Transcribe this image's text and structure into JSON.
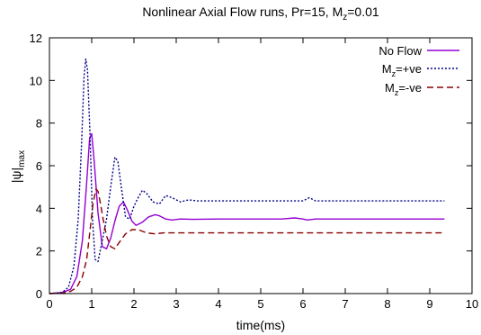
{
  "chart_data": {
    "type": "line",
    "title": {
      "prefix": "Nonlinear Axial Flow runs, Pr=15, M",
      "sub": "z",
      "suffix": "=0.01"
    },
    "xlabel": "time(ms)",
    "ylabel": {
      "main": "|ψ|",
      "sub": "max"
    },
    "xlim": [
      0,
      10
    ],
    "ylim": [
      0,
      12
    ],
    "xticks": [
      "0",
      "1",
      "2",
      "3",
      "4",
      "5",
      "6",
      "7",
      "8",
      "9",
      "10"
    ],
    "yticks": [
      "0",
      "2",
      "4",
      "6",
      "8",
      "10",
      "12"
    ],
    "grid": false,
    "legend_position": "top-right",
    "series": [
      {
        "name": "No Flow",
        "legend": {
          "main": "No Flow",
          "sub": "",
          "suffix": ""
        },
        "color": "#9400d3",
        "dash": "solid",
        "x": [
          0,
          0.3,
          0.5,
          0.65,
          0.78,
          0.88,
          0.95,
          1.0,
          1.06,
          1.15,
          1.25,
          1.35,
          1.45,
          1.55,
          1.65,
          1.75,
          1.85,
          1.95,
          2.05,
          2.2,
          2.35,
          2.5,
          2.6,
          2.75,
          2.9,
          3.1,
          3.4,
          4.0,
          5.0,
          5.5,
          5.8,
          6.0,
          6.1,
          6.3,
          7.0,
          8.0,
          9.35
        ],
        "y": [
          0,
          0.05,
          0.2,
          0.8,
          2.5,
          5.2,
          7.3,
          7.5,
          6.2,
          3.8,
          2.2,
          2.1,
          2.6,
          3.4,
          4.1,
          4.3,
          3.9,
          3.4,
          3.2,
          3.35,
          3.6,
          3.7,
          3.65,
          3.5,
          3.45,
          3.5,
          3.48,
          3.5,
          3.5,
          3.5,
          3.55,
          3.5,
          3.45,
          3.5,
          3.5,
          3.5,
          3.5
        ]
      },
      {
        "name": "Mz=+ve",
        "legend": {
          "main": "M",
          "sub": "z",
          "suffix": "=+ve"
        },
        "color": "#00008b",
        "dash": "dotted",
        "x": [
          0,
          0.3,
          0.45,
          0.58,
          0.68,
          0.76,
          0.82,
          0.86,
          0.9,
          0.96,
          1.02,
          1.08,
          1.15,
          1.25,
          1.35,
          1.45,
          1.55,
          1.62,
          1.7,
          1.8,
          1.9,
          2.0,
          2.1,
          2.2,
          2.3,
          2.45,
          2.6,
          2.75,
          2.9,
          3.1,
          3.3,
          3.5,
          4.0,
          5.0,
          6.0,
          6.15,
          6.3,
          7.0,
          8.0,
          9.35
        ],
        "y": [
          0,
          0.05,
          0.3,
          1.3,
          3.5,
          7.0,
          10.2,
          11.0,
          10.5,
          7.5,
          3.5,
          1.6,
          1.5,
          2.5,
          3.5,
          5.0,
          6.4,
          6.2,
          5.0,
          3.6,
          3.5,
          4.1,
          4.5,
          4.85,
          4.7,
          4.3,
          4.2,
          4.6,
          4.5,
          4.3,
          4.4,
          4.35,
          4.35,
          4.35,
          4.35,
          4.5,
          4.35,
          4.35,
          4.35,
          4.35
        ]
      },
      {
        "name": "Mz=-ve",
        "legend": {
          "main": "M",
          "sub": "z",
          "suffix": "=-ve"
        },
        "color": "#8b0000",
        "dash": "dashed",
        "x": [
          0,
          0.3,
          0.5,
          0.65,
          0.78,
          0.88,
          0.95,
          1.03,
          1.1,
          1.15,
          1.2,
          1.27,
          1.35,
          1.45,
          1.55,
          1.65,
          1.8,
          1.95,
          2.1,
          2.3,
          2.5,
          2.7,
          3.0,
          3.5,
          4.0,
          5.0,
          6.0,
          7.0,
          8.0,
          9.35
        ],
        "y": [
          0,
          0.02,
          0.1,
          0.3,
          0.8,
          1.6,
          2.8,
          4.2,
          4.9,
          4.8,
          4.3,
          3.5,
          2.7,
          2.2,
          2.1,
          2.4,
          2.8,
          3.0,
          3.0,
          2.85,
          2.8,
          2.85,
          2.85,
          2.85,
          2.85,
          2.85,
          2.85,
          2.85,
          2.85,
          2.85
        ]
      }
    ]
  }
}
